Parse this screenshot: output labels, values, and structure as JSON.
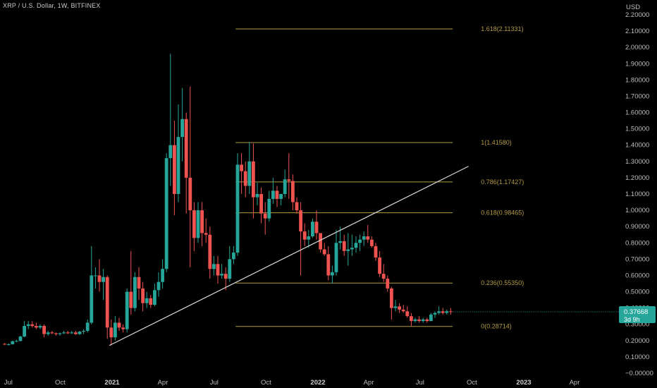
{
  "header": {
    "title": "XRP / U.S. Dollar, 1W, BITFINEX"
  },
  "price_axis": {
    "currency": "USD"
  },
  "current_price": {
    "value": "0.37668",
    "countdown": "3d 9h",
    "color": "#26a69a"
  },
  "colors": {
    "up": "#26a69a",
    "down": "#ef5350",
    "fib": "#b39b45",
    "trendline": "#d9d9d9",
    "background": "#000000"
  },
  "chart_data": {
    "type": "candlestick",
    "symbol": "XRP / U.S. Dollar",
    "interval": "1W",
    "exchange": "BITFINEX",
    "ylim": [
      0,
      2.2
    ],
    "y_ticks": [
      "2.20000",
      "2.10000",
      "2.00000",
      "1.90000",
      "1.80000",
      "1.70000",
      "1.60000",
      "1.50000",
      "1.40000",
      "1.30000",
      "1.20000",
      "1.10000",
      "1.00000",
      "0.90000",
      "0.80000",
      "0.70000",
      "0.60000",
      "0.50000",
      "0.40000",
      "0.30000",
      "0.20000",
      "0.10000",
      "−0.00000"
    ],
    "x_ticks": [
      "Jul",
      "Oct",
      "2021",
      "Apr",
      "Jul",
      "Oct",
      "2022",
      "Apr",
      "Jul",
      "Oct",
      "2023",
      "Apr"
    ],
    "x_tick_dates": [
      "2020-07-01",
      "2020-10-01",
      "2021-01-01",
      "2021-04-01",
      "2021-07-01",
      "2021-10-01",
      "2022-01-01",
      "2022-04-01",
      "2022-07-01",
      "2022-10-01",
      "2023-01-01",
      "2023-04-01"
    ],
    "grid": false,
    "fib_retracement": {
      "levels": [
        {
          "ratio": "1.618",
          "price": "2.11331",
          "label": "1.618(2.11331)"
        },
        {
          "ratio": "1",
          "price": "1.41580",
          "label": "1(1.41580)"
        },
        {
          "ratio": "0.786",
          "price": "1.17427",
          "label": "0.786(1.17427)"
        },
        {
          "ratio": "0.618",
          "price": "0.98465",
          "label": "0.618(0.98465)"
        },
        {
          "ratio": "0.236",
          "price": "0.55350",
          "label": "0.236(0.55350)"
        },
        {
          "ratio": "0",
          "price": "0.28714",
          "label": "0(0.28714)"
        }
      ],
      "start_date": "2021-08-08",
      "end_date": "2022-08-28"
    },
    "trendline": {
      "start": {
        "date": "2020-12-27",
        "price": 0.17
      },
      "end": {
        "date": "2022-09-25",
        "price": 1.27
      }
    },
    "candles": [
      [
        "2020-06-21",
        0.18,
        0.185,
        0.172,
        0.176
      ],
      [
        "2020-06-28",
        0.176,
        0.182,
        0.17,
        0.178
      ],
      [
        "2020-07-05",
        0.178,
        0.2,
        0.175,
        0.196
      ],
      [
        "2020-07-12",
        0.196,
        0.205,
        0.19,
        0.198
      ],
      [
        "2020-07-19",
        0.198,
        0.23,
        0.195,
        0.225
      ],
      [
        "2020-07-26",
        0.225,
        0.32,
        0.22,
        0.29
      ],
      [
        "2020-08-02",
        0.29,
        0.32,
        0.27,
        0.3
      ],
      [
        "2020-08-09",
        0.3,
        0.32,
        0.28,
        0.29
      ],
      [
        "2020-08-16",
        0.29,
        0.31,
        0.27,
        0.28
      ],
      [
        "2020-08-23",
        0.28,
        0.3,
        0.27,
        0.29
      ],
      [
        "2020-08-30",
        0.29,
        0.3,
        0.22,
        0.24
      ],
      [
        "2020-09-06",
        0.24,
        0.26,
        0.23,
        0.25
      ],
      [
        "2020-09-13",
        0.25,
        0.26,
        0.24,
        0.245
      ],
      [
        "2020-09-20",
        0.245,
        0.25,
        0.23,
        0.24
      ],
      [
        "2020-09-27",
        0.24,
        0.25,
        0.23,
        0.245
      ],
      [
        "2020-10-04",
        0.245,
        0.26,
        0.24,
        0.25
      ],
      [
        "2020-10-11",
        0.25,
        0.26,
        0.24,
        0.245
      ],
      [
        "2020-10-18",
        0.245,
        0.26,
        0.24,
        0.25
      ],
      [
        "2020-10-25",
        0.25,
        0.26,
        0.235,
        0.24
      ],
      [
        "2020-11-01",
        0.24,
        0.26,
        0.235,
        0.255
      ],
      [
        "2020-11-08",
        0.255,
        0.27,
        0.24,
        0.26
      ],
      [
        "2020-11-15",
        0.26,
        0.33,
        0.25,
        0.31
      ],
      [
        "2020-11-22",
        0.31,
        0.78,
        0.3,
        0.6
      ],
      [
        "2020-11-29",
        0.6,
        0.65,
        0.52,
        0.6
      ],
      [
        "2020-12-06",
        0.6,
        0.7,
        0.5,
        0.56
      ],
      [
        "2020-12-13",
        0.56,
        0.64,
        0.45,
        0.59
      ],
      [
        "2020-12-20",
        0.59,
        0.6,
        0.21,
        0.28
      ],
      [
        "2020-12-27",
        0.28,
        0.33,
        0.17,
        0.22
      ],
      [
        "2021-01-03",
        0.22,
        0.35,
        0.2,
        0.31
      ],
      [
        "2021-01-10",
        0.31,
        0.34,
        0.26,
        0.28
      ],
      [
        "2021-01-17",
        0.28,
        0.3,
        0.25,
        0.27
      ],
      [
        "2021-01-24",
        0.27,
        0.52,
        0.25,
        0.5
      ],
      [
        "2021-01-31",
        0.5,
        0.75,
        0.36,
        0.4
      ],
      [
        "2021-02-07",
        0.4,
        0.62,
        0.38,
        0.59
      ],
      [
        "2021-02-14",
        0.59,
        0.65,
        0.45,
        0.52
      ],
      [
        "2021-02-21",
        0.52,
        0.56,
        0.38,
        0.43
      ],
      [
        "2021-02-28",
        0.43,
        0.5,
        0.4,
        0.46
      ],
      [
        "2021-03-07",
        0.46,
        0.48,
        0.4,
        0.42
      ],
      [
        "2021-03-14",
        0.42,
        0.55,
        0.41,
        0.51
      ],
      [
        "2021-03-21",
        0.51,
        0.62,
        0.47,
        0.56
      ],
      [
        "2021-03-28",
        0.56,
        0.7,
        0.52,
        0.64
      ],
      [
        "2021-04-04",
        0.64,
        1.35,
        0.62,
        1.32
      ],
      [
        "2021-04-11",
        1.32,
        1.96,
        1.15,
        1.4
      ],
      [
        "2021-04-18",
        1.4,
        1.55,
        0.97,
        1.1
      ],
      [
        "2021-04-25",
        1.1,
        1.65,
        1.05,
        1.45
      ],
      [
        "2021-05-02",
        1.45,
        1.75,
        1.3,
        1.56
      ],
      [
        "2021-05-09",
        1.56,
        1.6,
        0.98,
        1.2
      ],
      [
        "2021-05-16",
        1.2,
        1.76,
        0.65,
        1.0
      ],
      [
        "2021-05-23",
        1.0,
        1.05,
        0.75,
        0.83
      ],
      [
        "2021-05-30",
        0.83,
        1.05,
        0.8,
        1.0
      ],
      [
        "2021-06-06",
        1.0,
        1.05,
        0.78,
        0.86
      ],
      [
        "2021-06-13",
        0.86,
        0.95,
        0.8,
        0.85
      ],
      [
        "2021-06-20",
        0.85,
        0.9,
        0.58,
        0.64
      ],
      [
        "2021-06-27",
        0.64,
        0.72,
        0.6,
        0.67
      ],
      [
        "2021-07-04",
        0.67,
        0.72,
        0.55,
        0.6
      ],
      [
        "2021-07-11",
        0.6,
        0.67,
        0.58,
        0.61
      ],
      [
        "2021-07-18",
        0.61,
        0.65,
        0.51,
        0.58
      ],
      [
        "2021-07-25",
        0.58,
        0.78,
        0.56,
        0.7
      ],
      [
        "2021-08-01",
        0.7,
        0.78,
        0.67,
        0.74
      ],
      [
        "2021-08-08",
        0.74,
        1.35,
        0.72,
        1.28
      ],
      [
        "2021-08-15",
        1.28,
        1.35,
        1.1,
        1.24
      ],
      [
        "2021-08-22",
        1.24,
        1.3,
        1.08,
        1.15
      ],
      [
        "2021-08-29",
        1.15,
        1.42,
        1.1,
        1.3
      ],
      [
        "2021-09-05",
        1.3,
        1.41,
        0.95,
        1.08
      ],
      [
        "2021-09-12",
        1.08,
        1.17,
        1.03,
        1.1
      ],
      [
        "2021-09-19",
        1.1,
        1.14,
        0.92,
        0.98
      ],
      [
        "2021-09-26",
        0.98,
        1.05,
        0.85,
        0.95
      ],
      [
        "2021-10-03",
        0.95,
        1.12,
        0.93,
        1.07
      ],
      [
        "2021-10-10",
        1.07,
        1.2,
        1.04,
        1.12
      ],
      [
        "2021-10-17",
        1.12,
        1.15,
        1.02,
        1.07
      ],
      [
        "2021-10-24",
        1.07,
        1.1,
        1.03,
        1.1
      ],
      [
        "2021-10-31",
        1.1,
        1.25,
        1.08,
        1.19
      ],
      [
        "2021-11-07",
        1.19,
        1.35,
        1.07,
        1.18
      ],
      [
        "2021-11-14",
        1.18,
        1.22,
        1.0,
        1.05
      ],
      [
        "2021-11-21",
        1.05,
        1.08,
        0.98,
        1.0
      ],
      [
        "2021-11-28",
        1.0,
        1.05,
        0.6,
        0.87
      ],
      [
        "2021-12-05",
        0.87,
        0.92,
        0.78,
        0.82
      ],
      [
        "2021-12-12",
        0.82,
        0.88,
        0.77,
        0.84
      ],
      [
        "2021-12-19",
        0.84,
        0.95,
        0.83,
        0.93
      ],
      [
        "2021-12-26",
        0.93,
        1.0,
        0.82,
        0.86
      ],
      [
        "2022-01-02",
        0.86,
        0.86,
        0.74,
        0.76
      ],
      [
        "2022-01-09",
        0.76,
        0.8,
        0.72,
        0.73
      ],
      [
        "2022-01-16",
        0.73,
        0.78,
        0.57,
        0.6
      ],
      [
        "2022-01-23",
        0.6,
        0.66,
        0.55,
        0.62
      ],
      [
        "2022-01-30",
        0.62,
        0.88,
        0.6,
        0.8
      ],
      [
        "2022-02-06",
        0.8,
        0.9,
        0.76,
        0.81
      ],
      [
        "2022-02-13",
        0.81,
        0.85,
        0.72,
        0.75
      ],
      [
        "2022-02-20",
        0.75,
        0.86,
        0.66,
        0.76
      ],
      [
        "2022-02-27",
        0.76,
        0.85,
        0.72,
        0.77
      ],
      [
        "2022-03-06",
        0.77,
        0.84,
        0.74,
        0.8
      ],
      [
        "2022-03-13",
        0.8,
        0.85,
        0.75,
        0.82
      ],
      [
        "2022-03-20",
        0.82,
        0.87,
        0.78,
        0.84
      ],
      [
        "2022-03-27",
        0.84,
        0.91,
        0.8,
        0.82
      ],
      [
        "2022-04-03",
        0.82,
        0.84,
        0.77,
        0.78
      ],
      [
        "2022-04-10",
        0.78,
        0.8,
        0.69,
        0.71
      ],
      [
        "2022-04-17",
        0.71,
        0.75,
        0.59,
        0.61
      ],
      [
        "2022-04-24",
        0.61,
        0.67,
        0.56,
        0.58
      ],
      [
        "2022-05-01",
        0.58,
        0.6,
        0.5,
        0.52
      ],
      [
        "2022-05-08",
        0.52,
        0.53,
        0.33,
        0.4
      ],
      [
        "2022-05-15",
        0.4,
        0.45,
        0.38,
        0.41
      ],
      [
        "2022-05-22",
        0.41,
        0.43,
        0.37,
        0.39
      ],
      [
        "2022-05-29",
        0.39,
        0.42,
        0.37,
        0.38
      ],
      [
        "2022-06-05",
        0.38,
        0.41,
        0.34,
        0.35
      ],
      [
        "2022-06-12",
        0.35,
        0.37,
        0.29,
        0.32
      ],
      [
        "2022-06-19",
        0.32,
        0.34,
        0.31,
        0.33
      ],
      [
        "2022-06-26",
        0.33,
        0.35,
        0.31,
        0.32
      ],
      [
        "2022-07-03",
        0.32,
        0.34,
        0.31,
        0.33
      ],
      [
        "2022-07-10",
        0.33,
        0.34,
        0.31,
        0.32
      ],
      [
        "2022-07-17",
        0.32,
        0.37,
        0.32,
        0.36
      ],
      [
        "2022-07-24",
        0.36,
        0.38,
        0.34,
        0.37
      ],
      [
        "2022-07-31",
        0.37,
        0.41,
        0.36,
        0.38
      ],
      [
        "2022-08-07",
        0.38,
        0.4,
        0.36,
        0.37
      ],
      [
        "2022-08-14",
        0.37,
        0.39,
        0.36,
        0.38
      ],
      [
        "2022-08-21",
        0.38,
        0.4,
        0.36,
        0.37668
      ]
    ]
  }
}
